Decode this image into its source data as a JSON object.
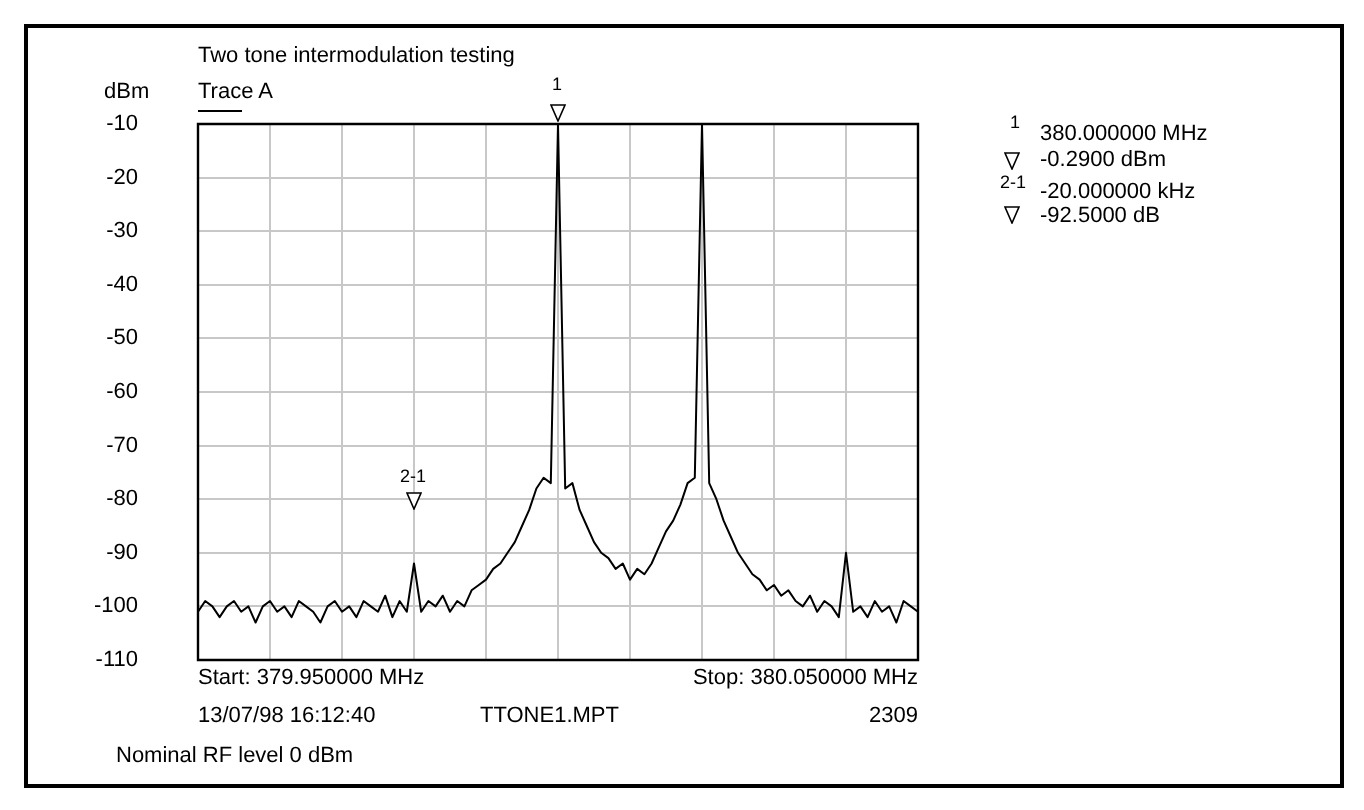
{
  "chart_data": {
    "type": "line",
    "title": "Two tone intermodulation testing",
    "ylabel": "dBm",
    "annotations": [
      "Trace A",
      "Start: 379.950000 MHz",
      "Stop: 380.050000 MHz",
      "13/07/98 16:12:40",
      "TTONE1.MPT",
      "2309",
      "Nominal RF level 0 dBm",
      "1",
      "380.000000 MHz",
      "-0.2900 dBm",
      "2-1",
      "-20.000000 kHz",
      "-92.5000 dB",
      "1",
      "2-1"
    ],
    "categories": [
      null,
      null,
      null,
      null,
      null,
      null,
      null,
      null,
      null,
      null,
      null,
      null,
      null,
      null,
      null,
      null,
      null,
      null,
      null,
      null,
      null,
      null,
      null,
      null,
      null,
      null,
      null,
      null,
      null,
      null,
      null,
      null,
      null,
      null,
      null,
      null,
      null,
      null,
      null,
      null,
      null,
      null,
      null,
      null,
      null,
      null,
      null,
      null,
      null,
      null,
      null,
      null,
      null,
      null,
      null,
      null,
      null,
      null,
      null,
      null,
      null,
      null,
      null,
      null,
      null,
      null,
      null,
      null,
      null,
      null,
      null,
      null,
      null,
      null,
      null,
      null,
      null,
      null,
      null,
      null,
      null,
      null,
      null,
      null,
      null,
      null,
      null,
      null,
      null,
      null,
      null,
      null,
      null,
      null,
      null,
      null,
      null,
      null,
      null,
      null,
      null
    ],
    "series": [
      {
        "color": "#000000",
        "values": [
          -101,
          -99,
          -100,
          -102,
          -100,
          -99,
          -101,
          -100,
          -103,
          -100,
          -99,
          -101,
          -100,
          -102,
          -99,
          -100,
          -101,
          -103,
          -100,
          -99,
          -101,
          -100,
          -102,
          -99,
          -100,
          -101,
          -98,
          -102,
          -99,
          -101,
          -92,
          -101,
          -99,
          -100,
          -98,
          -101,
          -99,
          -100,
          -97,
          -96,
          -95,
          -93,
          -92,
          -90,
          -88,
          -85,
          -82,
          -78,
          -76,
          -77,
          -10,
          -78,
          -77,
          -82,
          -85,
          -88,
          -90,
          -91,
          -93,
          -92,
          -95,
          -93,
          -94,
          -92,
          -89,
          -86,
          -84,
          -81,
          -77,
          -76,
          -10,
          -77,
          -80,
          -84,
          -87,
          -90,
          -92,
          -94,
          -95,
          -97,
          -96,
          -98,
          -97,
          -99,
          -100,
          -98,
          -101,
          -99,
          -100,
          -102,
          -90,
          -101,
          -100,
          -102,
          -99,
          -101,
          -100,
          -103,
          -99,
          -100,
          -101
        ]
      }
    ],
    "ylim": [
      -110,
      -10
    ],
    "yticks": [
      -10,
      -20,
      -30,
      -40,
      -50,
      -60,
      -70,
      -80,
      -90,
      -100,
      -110
    ],
    "tick_labels": "y",
    "grid": true,
    "legend": false,
    "marker": "none",
    "line_style": "solid"
  }
}
